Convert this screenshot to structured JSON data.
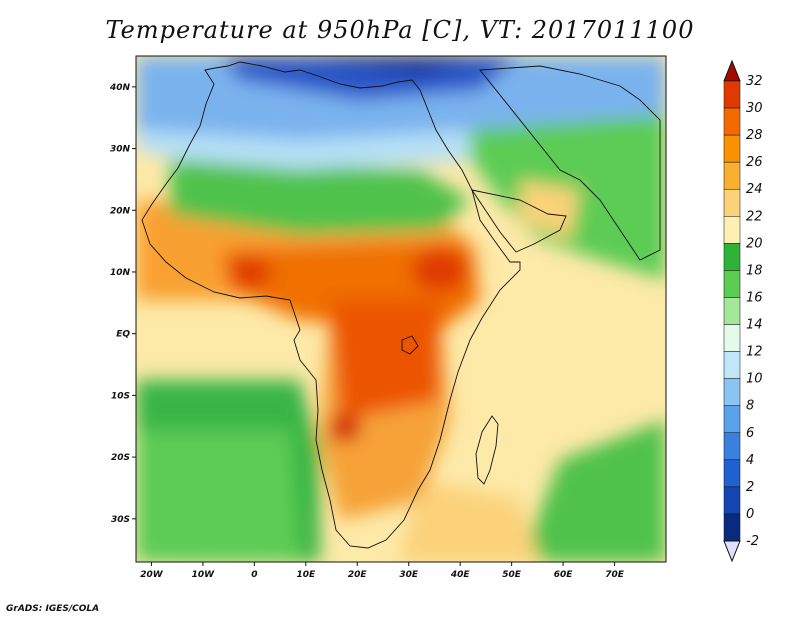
{
  "title": "Temperature at 950hPa [C], VT: 2017011100",
  "credit": "GrADS: IGES/COLA",
  "map": {
    "lon_range": [
      -23,
      80
    ],
    "lat_range": [
      -37,
      45
    ],
    "lon_ticks": [
      "20W",
      "10W",
      "0",
      "10E",
      "20E",
      "30E",
      "40E",
      "50E",
      "60E",
      "70E"
    ],
    "lon_tick_values": [
      -20,
      -10,
      0,
      10,
      20,
      30,
      40,
      50,
      60,
      70
    ],
    "lat_ticks": [
      "40N",
      "30N",
      "20N",
      "10N",
      "EQ",
      "10S",
      "20S",
      "30S"
    ],
    "lat_tick_values": [
      40,
      30,
      20,
      10,
      0,
      -10,
      -20,
      -30
    ]
  },
  "colorbar": {
    "labels": [
      "32",
      "30",
      "28",
      "26",
      "24",
      "22",
      "20",
      "18",
      "16",
      "14",
      "12",
      "10",
      "8",
      "6",
      "4",
      "2",
      "0",
      "-2"
    ],
    "colors": [
      "#a50a00",
      "#e03a00",
      "#f56a00",
      "#f99200",
      "#f9b030",
      "#fbd27a",
      "#fdf0b0",
      "#2eb238",
      "#5ccc55",
      "#a4e69a",
      "#e4faea",
      "#c0e6fa",
      "#8ac4f2",
      "#5aa0ea",
      "#3a80de",
      "#2060d0",
      "#1446b2",
      "#0a2a80"
    ],
    "min_arrow_color": "#e0e0fa"
  },
  "regions": [
    {
      "name": "mediterranean-cold",
      "color": "#2a56c8"
    },
    {
      "name": "north-africa-cool",
      "color": "#7ab2ee"
    },
    {
      "name": "saharan-mid",
      "color": "#b6e0f6"
    },
    {
      "name": "sahel-green",
      "color": "#4fc24c"
    },
    {
      "name": "arabia-green",
      "color": "#5ccc55"
    },
    {
      "name": "west-africa-warm",
      "color": "#f9a030"
    },
    {
      "name": "central-africa-hot",
      "color": "#f07000"
    },
    {
      "name": "congo-hot",
      "color": "#ec5400"
    },
    {
      "name": "southern-africa-warm",
      "color": "#f6a238"
    },
    {
      "name": "indian-ocean-mild",
      "color": "#fde9a8"
    },
    {
      "name": "south-atlantic-green",
      "color": "#39b544"
    },
    {
      "name": "east-africa-hotspot",
      "color": "#e03a00"
    }
  ]
}
